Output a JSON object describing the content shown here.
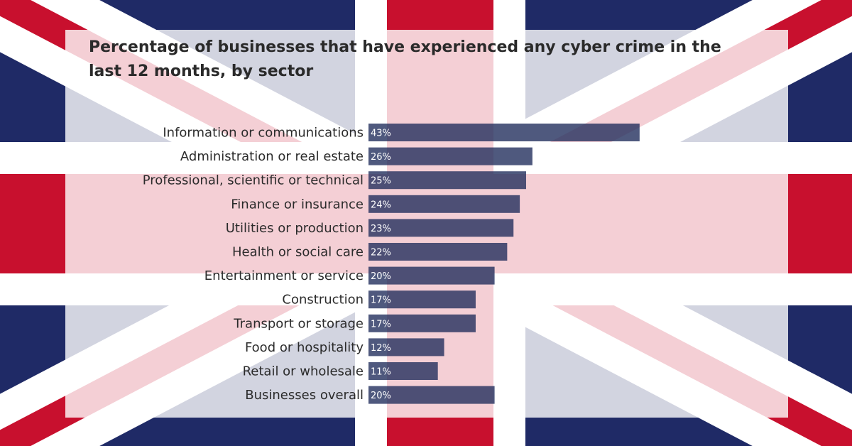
{
  "chart_data": {
    "type": "bar",
    "orientation": "horizontal",
    "title": "Percentage of businesses that have experienced any cyber crime in the last 12 months, by sector",
    "categories": [
      "Information or communications",
      "Administration or real estate",
      "Professional, scientific or technical",
      "Finance or insurance",
      "Utilities or production",
      "Health or social care",
      "Entertainment or service",
      "Construction",
      "Transport or storage",
      "Food or hospitality",
      "Retail or wholesale",
      "Businesses overall"
    ],
    "values": [
      43,
      26,
      25,
      24,
      23,
      22,
      20,
      17,
      17,
      12,
      11,
      20
    ],
    "value_labels": [
      "43%",
      "26%",
      "25%",
      "24%",
      "23%",
      "22%",
      "20%",
      "17%",
      "17%",
      "12%",
      "11%",
      "20%"
    ],
    "unit": "%",
    "grid": false,
    "bar_color": "#1d2a5a"
  },
  "background": "union-flag"
}
